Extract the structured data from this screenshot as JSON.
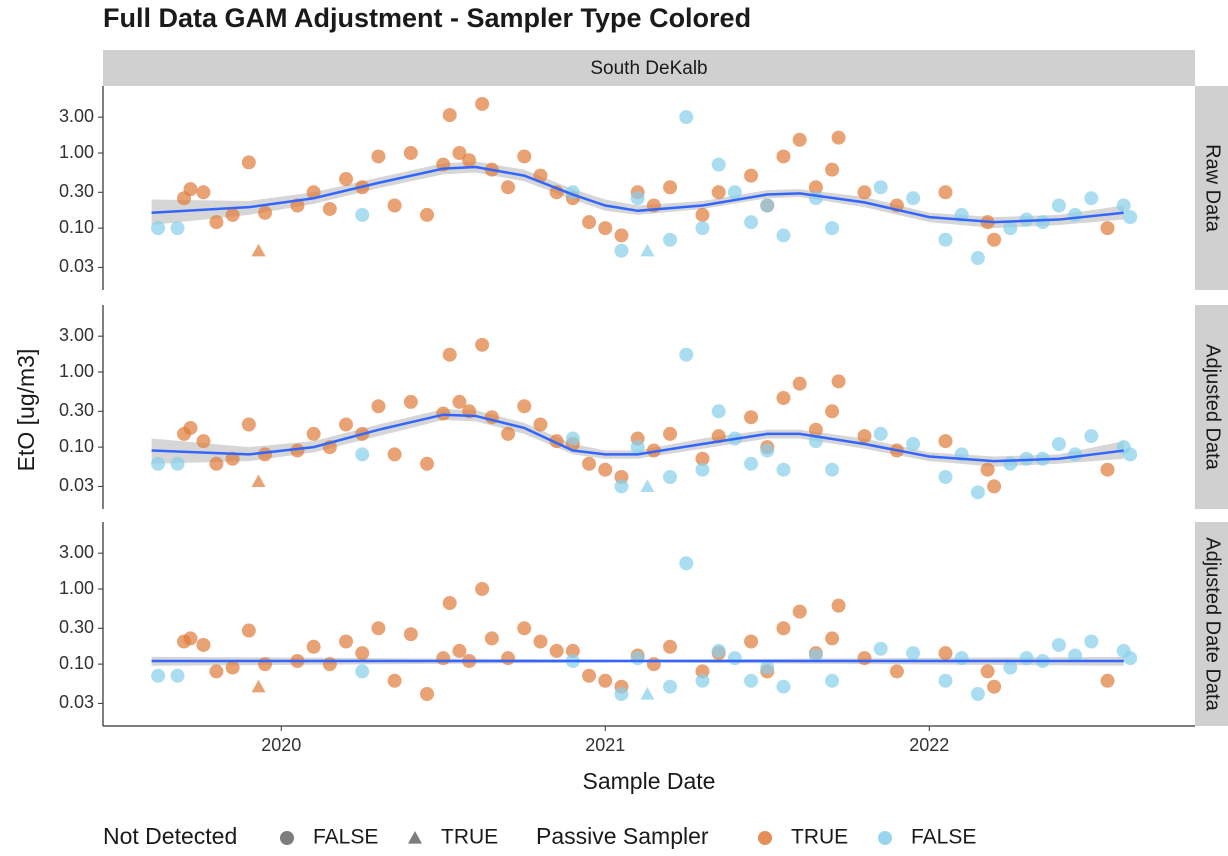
{
  "chart_data": {
    "type": "scatter",
    "title": "Full Data GAM Adjustment - Sampler Type Colored",
    "facet_label": "South DeKalb",
    "x_label": "Sample Date",
    "y_label": "EtO [ug/m3]",
    "xlim": [
      2019.45,
      2022.82
    ],
    "xticks": [
      2020,
      2021,
      2022
    ],
    "ylim": [
      0.015,
      7.8
    ],
    "log_y": true,
    "yticks": [
      {
        "value": 0.03,
        "label": "0.03"
      },
      {
        "value": 0.1,
        "label": "0.10"
      },
      {
        "value": 0.3,
        "label": "0.30"
      },
      {
        "value": 1,
        "label": "1.00"
      },
      {
        "value": 3,
        "label": "3.00"
      }
    ],
    "smooth_color": "#3366FF",
    "legends": [
      {
        "title": "Not Detected",
        "color": "#666666",
        "entries": [
          {
            "label": "FALSE",
            "shape": "circle"
          },
          {
            "label": "TRUE",
            "shape": "triangle"
          }
        ]
      },
      {
        "title": "Passive Sampler",
        "entries": [
          {
            "label": "TRUE",
            "color": "#E07B39",
            "shape": "circle"
          },
          {
            "label": "FALSE",
            "color": "#87CEEB",
            "shape": "circle"
          }
        ]
      }
    ],
    "panels": [
      {
        "label": "Raw Data",
        "series": [
          {
            "color": "#E07B39",
            "shape": "circle",
            "x": [
              2019.7,
              2019.72,
              2019.76,
              2019.8,
              2019.85,
              2019.9,
              2019.95,
              2020.05,
              2020.1,
              2020.15,
              2020.2,
              2020.25,
              2020.3,
              2020.35,
              2020.4,
              2020.45,
              2020.5,
              2020.52,
              2020.55,
              2020.58,
              2020.62,
              2020.65,
              2020.7,
              2020.75,
              2020.8,
              2020.85,
              2020.9,
              2020.95,
              2021.0,
              2021.05,
              2021.1,
              2021.15,
              2021.2,
              2021.3,
              2021.35,
              2021.45,
              2021.5,
              2021.55,
              2021.6,
              2021.65,
              2021.7,
              2021.72,
              2021.8,
              2021.9,
              2022.05,
              2022.18,
              2022.2,
              2022.55
            ],
            "values": [
              0.25,
              0.33,
              0.3,
              0.12,
              0.15,
              0.75,
              0.16,
              0.2,
              0.3,
              0.18,
              0.45,
              0.35,
              0.9,
              0.2,
              1.0,
              0.15,
              0.7,
              3.2,
              1.0,
              0.8,
              4.5,
              0.6,
              0.35,
              0.9,
              0.5,
              0.3,
              0.25,
              0.12,
              0.1,
              0.08,
              0.3,
              0.2,
              0.35,
              0.15,
              0.3,
              0.5,
              0.2,
              0.9,
              1.5,
              0.35,
              0.6,
              1.6,
              0.3,
              0.2,
              0.3,
              0.12,
              0.07,
              0.1
            ]
          },
          {
            "color": "#87CEEB",
            "shape": "circle",
            "x": [
              2019.62,
              2019.68,
              2020.25,
              2020.9,
              2021.05,
              2021.1,
              2021.2,
              2021.25,
              2021.3,
              2021.35,
              2021.4,
              2021.45,
              2021.5,
              2021.55,
              2021.65,
              2021.7,
              2021.85,
              2021.95,
              2022.05,
              2022.1,
              2022.15,
              2022.25,
              2022.3,
              2022.35,
              2022.4,
              2022.45,
              2022.5,
              2022.6,
              2022.62
            ],
            "values": [
              0.1,
              0.1,
              0.15,
              0.3,
              0.05,
              0.25,
              0.07,
              3.0,
              0.1,
              0.7,
              0.3,
              0.12,
              0.2,
              0.08,
              0.25,
              0.1,
              0.35,
              0.25,
              0.07,
              0.15,
              0.04,
              0.1,
              0.13,
              0.12,
              0.2,
              0.15,
              0.25,
              0.2,
              0.14
            ]
          },
          {
            "color": "#E07B39",
            "shape": "triangle",
            "x": [
              2019.93
            ],
            "values": [
              0.05
            ]
          },
          {
            "color": "#87CEEB",
            "shape": "triangle",
            "x": [
              2021.13
            ],
            "values": [
              0.05
            ]
          }
        ],
        "smooth": {
          "x": [
            2019.6,
            2019.9,
            2020.1,
            2020.3,
            2020.5,
            2020.6,
            2020.75,
            2020.9,
            2021.0,
            2021.1,
            2021.3,
            2021.5,
            2021.6,
            2021.8,
            2022.0,
            2022.2,
            2022.4,
            2022.6
          ],
          "values": [
            0.16,
            0.19,
            0.25,
            0.4,
            0.62,
            0.65,
            0.5,
            0.28,
            0.2,
            0.17,
            0.2,
            0.28,
            0.29,
            0.22,
            0.14,
            0.12,
            0.13,
            0.16
          ],
          "lower": [
            0.11,
            0.15,
            0.21,
            0.34,
            0.52,
            0.55,
            0.42,
            0.24,
            0.17,
            0.15,
            0.18,
            0.25,
            0.26,
            0.19,
            0.12,
            0.1,
            0.11,
            0.13
          ],
          "upper": [
            0.24,
            0.23,
            0.3,
            0.47,
            0.73,
            0.77,
            0.6,
            0.33,
            0.24,
            0.2,
            0.23,
            0.32,
            0.33,
            0.26,
            0.16,
            0.14,
            0.15,
            0.2
          ]
        }
      },
      {
        "label": "Adjusted Data",
        "series": [
          {
            "color": "#E07B39",
            "shape": "circle",
            "x": [
              2019.7,
              2019.72,
              2019.76,
              2019.8,
              2019.85,
              2019.9,
              2019.95,
              2020.05,
              2020.1,
              2020.15,
              2020.2,
              2020.25,
              2020.3,
              2020.35,
              2020.4,
              2020.45,
              2020.5,
              2020.52,
              2020.55,
              2020.58,
              2020.62,
              2020.65,
              2020.7,
              2020.75,
              2020.8,
              2020.85,
              2020.9,
              2020.95,
              2021.0,
              2021.05,
              2021.1,
              2021.15,
              2021.2,
              2021.3,
              2021.35,
              2021.45,
              2021.5,
              2021.55,
              2021.6,
              2021.65,
              2021.7,
              2021.72,
              2021.8,
              2021.9,
              2022.05,
              2022.18,
              2022.2,
              2022.55
            ],
            "values": [
              0.15,
              0.18,
              0.12,
              0.06,
              0.07,
              0.2,
              0.08,
              0.09,
              0.15,
              0.1,
              0.2,
              0.15,
              0.35,
              0.08,
              0.4,
              0.06,
              0.28,
              1.7,
              0.4,
              0.3,
              2.3,
              0.25,
              0.15,
              0.35,
              0.2,
              0.12,
              0.11,
              0.06,
              0.05,
              0.04,
              0.13,
              0.09,
              0.15,
              0.07,
              0.14,
              0.25,
              0.1,
              0.45,
              0.7,
              0.17,
              0.3,
              0.75,
              0.14,
              0.09,
              0.12,
              0.05,
              0.03,
              0.05
            ]
          },
          {
            "color": "#87CEEB",
            "shape": "circle",
            "x": [
              2019.62,
              2019.68,
              2020.25,
              2020.9,
              2021.05,
              2021.1,
              2021.2,
              2021.25,
              2021.3,
              2021.35,
              2021.4,
              2021.45,
              2021.5,
              2021.55,
              2021.65,
              2021.7,
              2021.85,
              2021.95,
              2022.05,
              2022.1,
              2022.15,
              2022.25,
              2022.3,
              2022.35,
              2022.4,
              2022.45,
              2022.5,
              2022.6,
              2022.62
            ],
            "values": [
              0.06,
              0.06,
              0.08,
              0.13,
              0.03,
              0.1,
              0.04,
              1.7,
              0.05,
              0.3,
              0.13,
              0.06,
              0.09,
              0.05,
              0.12,
              0.05,
              0.15,
              0.11,
              0.04,
              0.08,
              0.025,
              0.06,
              0.07,
              0.07,
              0.11,
              0.08,
              0.14,
              0.1,
              0.08
            ]
          },
          {
            "color": "#E07B39",
            "shape": "triangle",
            "x": [
              2019.93
            ],
            "values": [
              0.035
            ]
          },
          {
            "color": "#87CEEB",
            "shape": "triangle",
            "x": [
              2021.13
            ],
            "values": [
              0.03
            ]
          }
        ],
        "smooth": {
          "x": [
            2019.6,
            2019.9,
            2020.1,
            2020.3,
            2020.5,
            2020.6,
            2020.75,
            2020.9,
            2021.0,
            2021.1,
            2021.3,
            2021.5,
            2021.6,
            2021.8,
            2022.0,
            2022.2,
            2022.4,
            2022.6
          ],
          "values": [
            0.09,
            0.08,
            0.1,
            0.17,
            0.27,
            0.26,
            0.18,
            0.09,
            0.08,
            0.08,
            0.11,
            0.15,
            0.15,
            0.11,
            0.075,
            0.065,
            0.07,
            0.09
          ],
          "lower": [
            0.06,
            0.065,
            0.085,
            0.14,
            0.23,
            0.22,
            0.15,
            0.08,
            0.07,
            0.07,
            0.095,
            0.13,
            0.13,
            0.095,
            0.065,
            0.055,
            0.06,
            0.07
          ],
          "upper": [
            0.13,
            0.1,
            0.12,
            0.2,
            0.32,
            0.31,
            0.21,
            0.11,
            0.09,
            0.09,
            0.13,
            0.17,
            0.17,
            0.13,
            0.085,
            0.075,
            0.08,
            0.12
          ]
        }
      },
      {
        "label": "Adjusted Date Data",
        "series": [
          {
            "color": "#E07B39",
            "shape": "circle",
            "x": [
              2019.7,
              2019.72,
              2019.76,
              2019.8,
              2019.85,
              2019.9,
              2019.95,
              2020.05,
              2020.1,
              2020.15,
              2020.2,
              2020.25,
              2020.3,
              2020.35,
              2020.4,
              2020.45,
              2020.5,
              2020.52,
              2020.55,
              2020.58,
              2020.62,
              2020.65,
              2020.7,
              2020.75,
              2020.8,
              2020.85,
              2020.9,
              2020.95,
              2021.0,
              2021.05,
              2021.1,
              2021.15,
              2021.2,
              2021.3,
              2021.35,
              2021.45,
              2021.5,
              2021.55,
              2021.6,
              2021.65,
              2021.7,
              2021.72,
              2021.8,
              2021.9,
              2022.05,
              2022.18,
              2022.2,
              2022.55
            ],
            "values": [
              0.2,
              0.22,
              0.18,
              0.08,
              0.09,
              0.28,
              0.1,
              0.11,
              0.17,
              0.1,
              0.2,
              0.14,
              0.3,
              0.06,
              0.25,
              0.04,
              0.12,
              0.65,
              0.15,
              0.11,
              1.0,
              0.22,
              0.12,
              0.3,
              0.2,
              0.15,
              0.15,
              0.07,
              0.06,
              0.05,
              0.13,
              0.1,
              0.17,
              0.08,
              0.14,
              0.2,
              0.08,
              0.3,
              0.5,
              0.14,
              0.22,
              0.6,
              0.12,
              0.08,
              0.14,
              0.08,
              0.05,
              0.06
            ]
          },
          {
            "color": "#87CEEB",
            "shape": "circle",
            "x": [
              2019.62,
              2019.68,
              2020.25,
              2020.9,
              2021.05,
              2021.1,
              2021.2,
              2021.25,
              2021.3,
              2021.35,
              2021.4,
              2021.45,
              2021.5,
              2021.55,
              2021.65,
              2021.7,
              2021.85,
              2021.95,
              2022.05,
              2022.1,
              2022.15,
              2022.25,
              2022.3,
              2022.35,
              2022.4,
              2022.45,
              2022.5,
              2022.6,
              2022.62
            ],
            "values": [
              0.07,
              0.07,
              0.08,
              0.11,
              0.04,
              0.12,
              0.05,
              2.2,
              0.06,
              0.15,
              0.12,
              0.06,
              0.09,
              0.05,
              0.13,
              0.06,
              0.16,
              0.14,
              0.06,
              0.12,
              0.04,
              0.09,
              0.12,
              0.11,
              0.18,
              0.13,
              0.2,
              0.15,
              0.12
            ]
          },
          {
            "color": "#E07B39",
            "shape": "triangle",
            "x": [
              2019.93
            ],
            "values": [
              0.05
            ]
          },
          {
            "color": "#87CEEB",
            "shape": "triangle",
            "x": [
              2021.13
            ],
            "values": [
              0.04
            ]
          }
        ],
        "smooth": {
          "x": [
            2019.6,
            2021.1,
            2022.6
          ],
          "values": [
            0.11,
            0.11,
            0.11
          ],
          "lower": [
            0.095,
            0.105,
            0.095
          ],
          "upper": [
            0.125,
            0.115,
            0.125
          ]
        }
      }
    ]
  }
}
